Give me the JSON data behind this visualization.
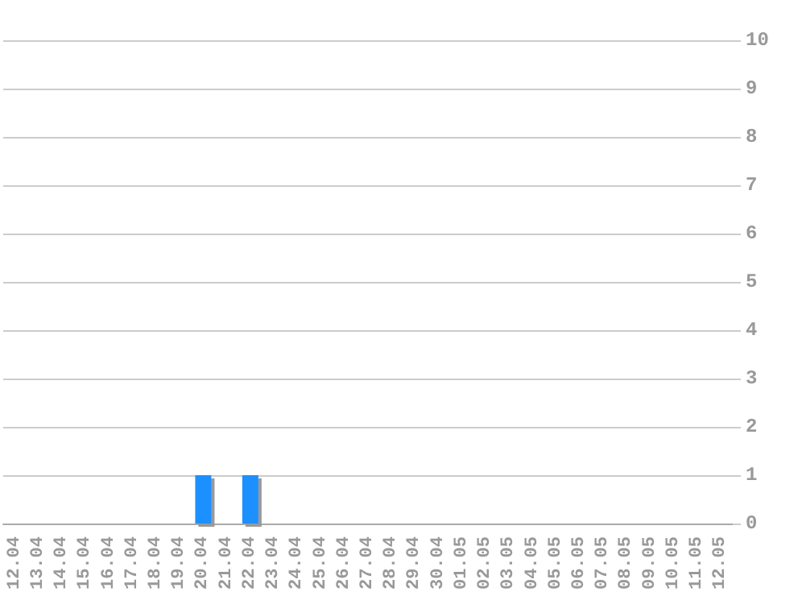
{
  "chart_data": {
    "type": "bar",
    "categories": [
      "12.04",
      "13.04",
      "14.04",
      "15.04",
      "16.04",
      "17.04",
      "18.04",
      "19.04",
      "20.04",
      "21.04",
      "22.04",
      "23.04",
      "24.04",
      "25.04",
      "26.04",
      "27.04",
      "28.04",
      "29.04",
      "30.04",
      "01.05",
      "02.05",
      "03.05",
      "04.05",
      "05.05",
      "06.05",
      "07.05",
      "08.05",
      "09.05",
      "10.05",
      "11.05",
      "12.05"
    ],
    "values": [
      0,
      0,
      0,
      0,
      0,
      0,
      0,
      0,
      1,
      0,
      1,
      0,
      0,
      0,
      0,
      0,
      0,
      0,
      0,
      0,
      0,
      0,
      0,
      0,
      0,
      0,
      0,
      0,
      0,
      0,
      0
    ],
    "color": "#1e90ff",
    "ylim": [
      0,
      10
    ],
    "yticks": [
      0,
      1,
      2,
      3,
      4,
      5,
      6,
      7,
      8,
      9,
      10
    ],
    "grid": "y"
  }
}
